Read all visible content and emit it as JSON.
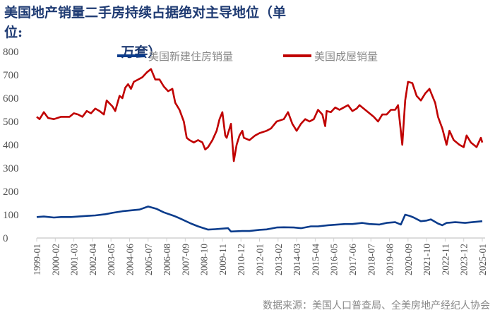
{
  "title_line1": "美国地产销量二手房持续占据绝对主导地位（单位:",
  "title_line2": "万套）",
  "source": "数据来源：美国人口普查局、全美房地产经纪人协会",
  "chart_data": {
    "type": "line",
    "title": "美国地产销量二手房持续占据绝对主导地位（单位:万套）",
    "ylim": [
      0,
      800
    ],
    "y_ticks": [
      0,
      100,
      200,
      300,
      400,
      500,
      600,
      700,
      800
    ],
    "x_range": [
      "1999-01",
      "2025-02"
    ],
    "x_ticks": [
      "1999-01",
      "2000-02",
      "2001-03",
      "2002-04",
      "2003-05",
      "2004-06",
      "2005-07",
      "2006-08",
      "2007-09",
      "2008-10",
      "2009-11",
      "2010-12",
      "2012-01",
      "2013-02",
      "2014-03",
      "2015-04",
      "2016-05",
      "2017-06",
      "2018-07",
      "2019-08",
      "2020-09",
      "2021-10",
      "2022-11",
      "2023-12",
      "2025-01"
    ],
    "grid": false,
    "legend_placement": "top",
    "series": [
      {
        "name": "美国新建住房销量",
        "color": "#0b3c8c",
        "points": [
          [
            "1999-01",
            90
          ],
          [
            "1999-06",
            92
          ],
          [
            "2000-01",
            88
          ],
          [
            "2000-06",
            90
          ],
          [
            "2001-01",
            90
          ],
          [
            "2001-06",
            92
          ],
          [
            "2002-01",
            95
          ],
          [
            "2002-06",
            97
          ],
          [
            "2003-01",
            102
          ],
          [
            "2003-06",
            108
          ],
          [
            "2004-01",
            115
          ],
          [
            "2004-06",
            118
          ],
          [
            "2005-01",
            122
          ],
          [
            "2005-07",
            135
          ],
          [
            "2006-01",
            125
          ],
          [
            "2006-06",
            110
          ],
          [
            "2007-01",
            95
          ],
          [
            "2007-06",
            82
          ],
          [
            "2008-01",
            62
          ],
          [
            "2008-06",
            50
          ],
          [
            "2009-01",
            36
          ],
          [
            "2009-06",
            38
          ],
          [
            "2010-03",
            42
          ],
          [
            "2010-05",
            28
          ],
          [
            "2011-01",
            30
          ],
          [
            "2011-06",
            30
          ],
          [
            "2012-01",
            35
          ],
          [
            "2012-06",
            37
          ],
          [
            "2013-01",
            45
          ],
          [
            "2013-06",
            46
          ],
          [
            "2014-01",
            45
          ],
          [
            "2014-06",
            42
          ],
          [
            "2015-01",
            50
          ],
          [
            "2015-06",
            50
          ],
          [
            "2016-01",
            55
          ],
          [
            "2016-06",
            57
          ],
          [
            "2017-01",
            60
          ],
          [
            "2017-06",
            60
          ],
          [
            "2018-01",
            65
          ],
          [
            "2018-06",
            60
          ],
          [
            "2019-01",
            58
          ],
          [
            "2019-06",
            65
          ],
          [
            "2019-12",
            68
          ],
          [
            "2020-04",
            58
          ],
          [
            "2020-07",
            100
          ],
          [
            "2020-10",
            95
          ],
          [
            "2021-01",
            88
          ],
          [
            "2021-06",
            72
          ],
          [
            "2021-10",
            75
          ],
          [
            "2022-01",
            80
          ],
          [
            "2022-06",
            62
          ],
          [
            "2022-09",
            55
          ],
          [
            "2022-12",
            65
          ],
          [
            "2023-06",
            68
          ],
          [
            "2024-01",
            65
          ],
          [
            "2024-06",
            68
          ],
          [
            "2025-01",
            72
          ]
        ]
      },
      {
        "name": "美国成屋销量",
        "color": "#c00000",
        "points": [
          [
            "1999-01",
            520
          ],
          [
            "1999-03",
            510
          ],
          [
            "1999-06",
            540
          ],
          [
            "1999-09",
            515
          ],
          [
            "2000-01",
            510
          ],
          [
            "2000-06",
            520
          ],
          [
            "2000-12",
            520
          ],
          [
            "2001-03",
            535
          ],
          [
            "2001-06",
            530
          ],
          [
            "2001-09",
            520
          ],
          [
            "2001-12",
            545
          ],
          [
            "2002-03",
            535
          ],
          [
            "2002-06",
            555
          ],
          [
            "2002-09",
            545
          ],
          [
            "2002-12",
            530
          ],
          [
            "2003-02",
            590
          ],
          [
            "2003-06",
            565
          ],
          [
            "2003-08",
            545
          ],
          [
            "2003-11",
            610
          ],
          [
            "2004-01",
            600
          ],
          [
            "2004-03",
            645
          ],
          [
            "2004-05",
            660
          ],
          [
            "2004-07",
            640
          ],
          [
            "2004-09",
            670
          ],
          [
            "2004-12",
            680
          ],
          [
            "2005-03",
            690
          ],
          [
            "2005-06",
            710
          ],
          [
            "2005-09",
            725
          ],
          [
            "2005-12",
            680
          ],
          [
            "2006-03",
            680
          ],
          [
            "2006-06",
            650
          ],
          [
            "2006-09",
            630
          ],
          [
            "2006-12",
            640
          ],
          [
            "2007-02",
            580
          ],
          [
            "2007-05",
            550
          ],
          [
            "2007-08",
            500
          ],
          [
            "2007-10",
            430
          ],
          [
            "2007-12",
            420
          ],
          [
            "2008-03",
            410
          ],
          [
            "2008-06",
            420
          ],
          [
            "2008-09",
            410
          ],
          [
            "2008-11",
            380
          ],
          [
            "2009-01",
            390
          ],
          [
            "2009-04",
            420
          ],
          [
            "2009-07",
            460
          ],
          [
            "2009-09",
            510
          ],
          [
            "2009-11",
            540
          ],
          [
            "2010-01",
            440
          ],
          [
            "2010-02",
            430
          ],
          [
            "2010-05",
            490
          ],
          [
            "2010-07",
            330
          ],
          [
            "2010-09",
            400
          ],
          [
            "2010-11",
            440
          ],
          [
            "2011-01",
            460
          ],
          [
            "2011-02",
            430
          ],
          [
            "2011-06",
            420
          ],
          [
            "2011-10",
            440
          ],
          [
            "2012-01",
            450
          ],
          [
            "2012-06",
            460
          ],
          [
            "2012-09",
            470
          ],
          [
            "2013-01",
            500
          ],
          [
            "2013-06",
            510
          ],
          [
            "2013-09",
            540
          ],
          [
            "2013-12",
            490
          ],
          [
            "2014-03",
            460
          ],
          [
            "2014-06",
            490
          ],
          [
            "2014-09",
            510
          ],
          [
            "2014-12",
            500
          ],
          [
            "2015-03",
            510
          ],
          [
            "2015-06",
            550
          ],
          [
            "2015-09",
            530
          ],
          [
            "2015-11",
            480
          ],
          [
            "2015-12",
            545
          ],
          [
            "2016-03",
            540
          ],
          [
            "2016-06",
            560
          ],
          [
            "2016-09",
            550
          ],
          [
            "2016-12",
            560
          ],
          [
            "2017-03",
            570
          ],
          [
            "2017-06",
            545
          ],
          [
            "2017-09",
            555
          ],
          [
            "2017-11",
            570
          ],
          [
            "2018-03",
            550
          ],
          [
            "2018-06",
            535
          ],
          [
            "2018-09",
            520
          ],
          [
            "2018-12",
            500
          ],
          [
            "2019-03",
            530
          ],
          [
            "2019-06",
            530
          ],
          [
            "2019-09",
            550
          ],
          [
            "2019-12",
            550
          ],
          [
            "2020-02",
            570
          ],
          [
            "2020-05",
            400
          ],
          [
            "2020-07",
            590
          ],
          [
            "2020-09",
            670
          ],
          [
            "2020-12",
            665
          ],
          [
            "2021-03",
            610
          ],
          [
            "2021-06",
            590
          ],
          [
            "2021-09",
            620
          ],
          [
            "2021-12",
            640
          ],
          [
            "2022-02",
            610
          ],
          [
            "2022-04",
            580
          ],
          [
            "2022-06",
            520
          ],
          [
            "2022-09",
            470
          ],
          [
            "2022-12",
            400
          ],
          [
            "2023-02",
            460
          ],
          [
            "2023-05",
            420
          ],
          [
            "2023-09",
            400
          ],
          [
            "2023-12",
            390
          ],
          [
            "2024-02",
            440
          ],
          [
            "2024-05",
            410
          ],
          [
            "2024-09",
            390
          ],
          [
            "2024-12",
            430
          ],
          [
            "2025-01",
            410
          ]
        ]
      }
    ]
  }
}
